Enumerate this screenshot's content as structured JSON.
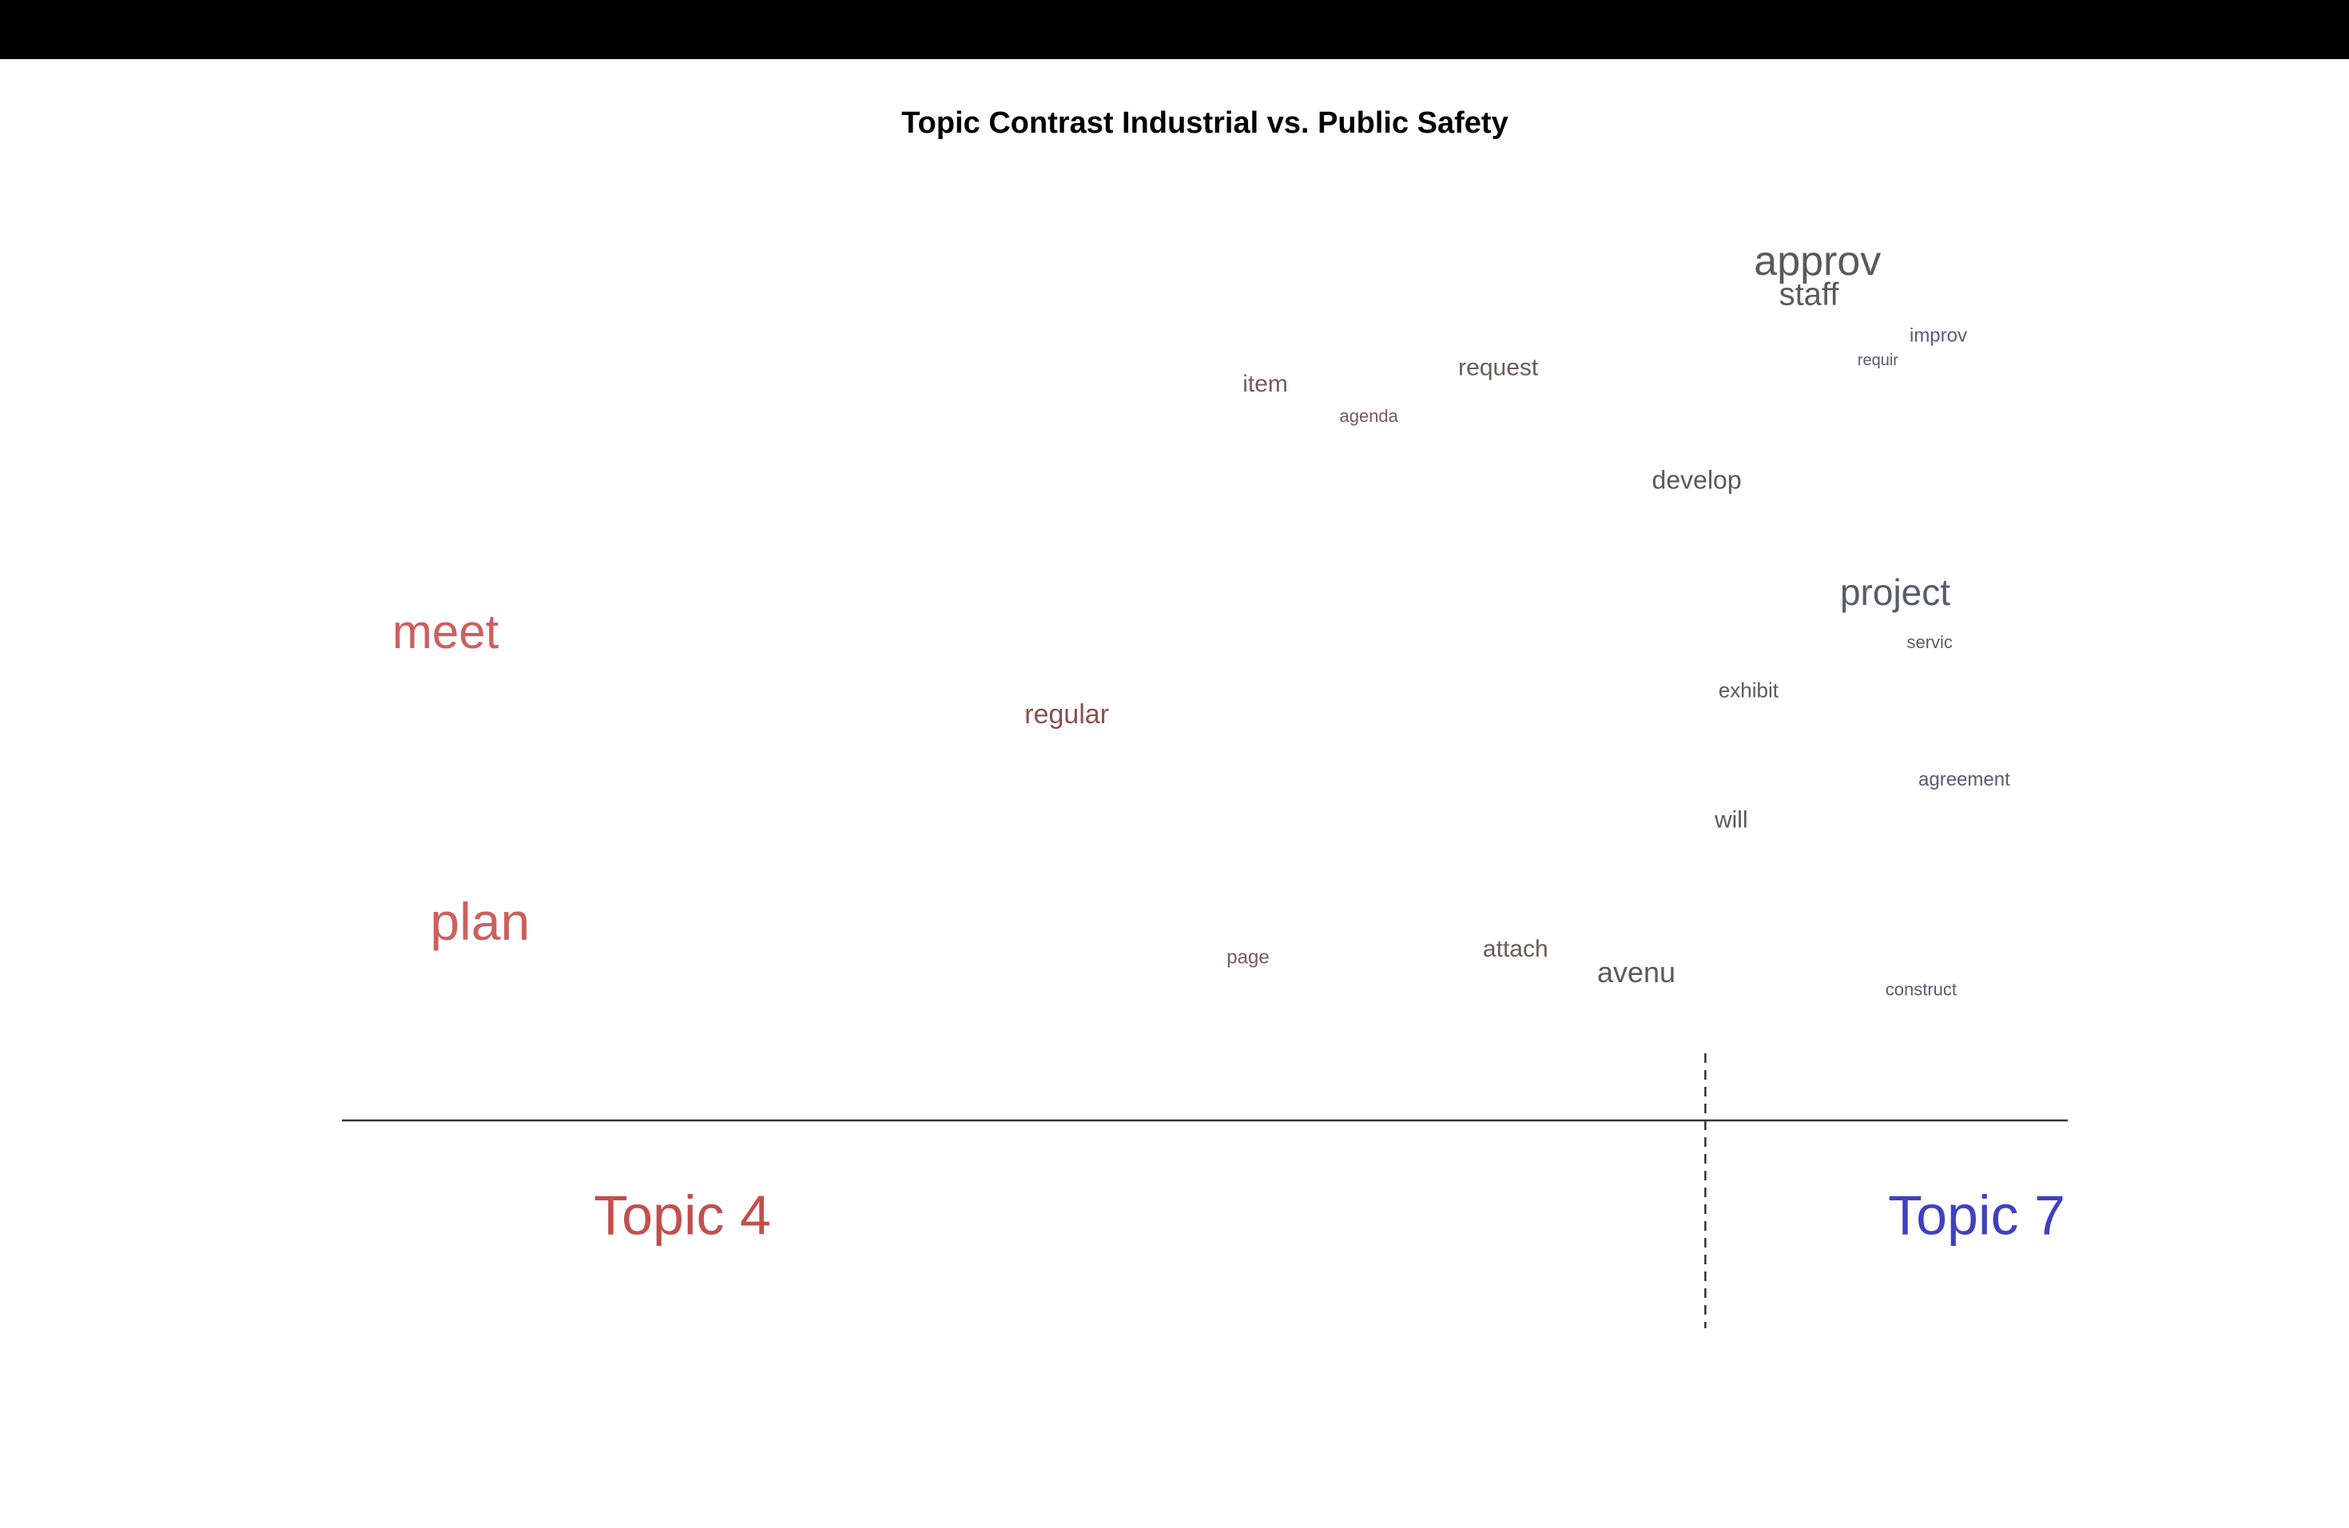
{
  "chart_data": {
    "type": "scatter",
    "title": "Topic Contrast Industrial vs. Public Safety",
    "xlabel": "",
    "ylabel": "",
    "xlim": [
      -1,
      1
    ],
    "ylim": [
      0,
      1
    ],
    "axis_line": true,
    "grid": false,
    "reference_x": 0.58,
    "topic_labels": [
      {
        "text": "Topic 4",
        "color": "#c0504d",
        "side": "left"
      },
      {
        "text": "Topic 7",
        "color": "#4040c0",
        "side": "right"
      }
    ],
    "points": [
      {
        "word": "approv",
        "x": 0.71,
        "y": 0.95,
        "size": 52,
        "color": "#5a5a5a"
      },
      {
        "word": "staff",
        "x": 0.7,
        "y": 0.91,
        "size": 40,
        "color": "#5a5a5a"
      },
      {
        "word": "improv",
        "x": 0.85,
        "y": 0.86,
        "size": 24,
        "color": "#5a5a78"
      },
      {
        "word": "requir",
        "x": 0.78,
        "y": 0.83,
        "size": 20,
        "color": "#5a5a70"
      },
      {
        "word": "item",
        "x": 0.07,
        "y": 0.8,
        "size": 30,
        "color": "#7a5a5a"
      },
      {
        "word": "request",
        "x": 0.34,
        "y": 0.82,
        "size": 30,
        "color": "#6a5a5a"
      },
      {
        "word": "agenda",
        "x": 0.19,
        "y": 0.76,
        "size": 22,
        "color": "#7a5a5a"
      },
      {
        "word": "develop",
        "x": 0.57,
        "y": 0.68,
        "size": 32,
        "color": "#5a5a5a"
      },
      {
        "word": "project",
        "x": 0.8,
        "y": 0.54,
        "size": 46,
        "color": "#5a5a6e"
      },
      {
        "word": "meet",
        "x": -0.88,
        "y": 0.49,
        "size": 60,
        "color": "#cc6060"
      },
      {
        "word": "servic",
        "x": 0.84,
        "y": 0.48,
        "size": 22,
        "color": "#5a5a70"
      },
      {
        "word": "exhibit",
        "x": 0.63,
        "y": 0.42,
        "size": 26,
        "color": "#5a5a5a"
      },
      {
        "word": "regular",
        "x": -0.16,
        "y": 0.39,
        "size": 34,
        "color": "#8a5050"
      },
      {
        "word": "agreement",
        "x": 0.88,
        "y": 0.31,
        "size": 24,
        "color": "#5a5a70"
      },
      {
        "word": "will",
        "x": 0.61,
        "y": 0.26,
        "size": 30,
        "color": "#5a5a5a"
      },
      {
        "word": "plan",
        "x": -0.84,
        "y": 0.13,
        "size": 66,
        "color": "#cc6060"
      },
      {
        "word": "page",
        "x": 0.05,
        "y": 0.09,
        "size": 24,
        "color": "#7a5a5a"
      },
      {
        "word": "attach",
        "x": 0.36,
        "y": 0.1,
        "size": 30,
        "color": "#6a5a5a"
      },
      {
        "word": "avenu",
        "x": 0.5,
        "y": 0.07,
        "size": 36,
        "color": "#5a5a5a"
      },
      {
        "word": "construct",
        "x": 0.83,
        "y": 0.05,
        "size": 22,
        "color": "#5a5a70"
      }
    ]
  }
}
